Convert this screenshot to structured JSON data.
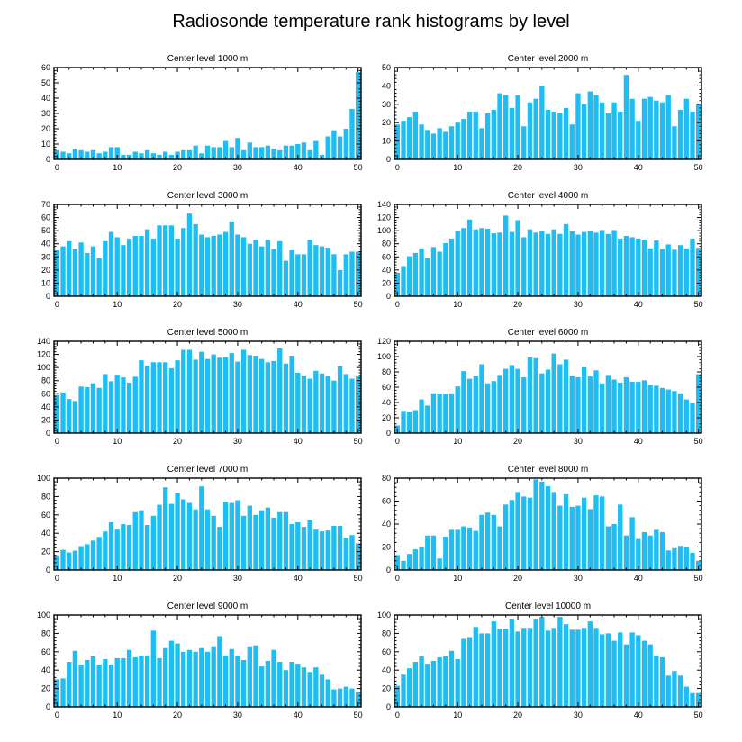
{
  "figure_title": "Radiosonde temperature rank histograms by level",
  "colors": {
    "bar": "#1EBEF5",
    "axis": "#000000",
    "background": "#ffffff"
  },
  "chart_data": [
    {
      "type": "bar",
      "title": "Center level 1000 m",
      "ylim": [
        0,
        60
      ],
      "yticks": [
        0,
        10,
        20,
        30,
        40,
        50,
        60
      ],
      "xticks": [
        0,
        10,
        20,
        30,
        40,
        50
      ],
      "values": [
        6,
        5,
        4,
        7,
        6,
        5,
        6,
        4,
        5,
        8,
        8,
        3,
        3,
        5,
        4,
        6,
        4,
        3,
        5,
        3,
        5,
        6,
        6,
        9,
        4,
        9,
        8,
        8,
        12,
        8,
        14,
        6,
        11,
        8,
        8,
        9,
        7,
        6,
        9,
        9,
        10,
        11,
        6,
        12,
        3,
        15,
        19,
        15,
        20,
        33,
        57
      ]
    },
    {
      "type": "bar",
      "title": "Center level 2000 m",
      "ylim": [
        0,
        50
      ],
      "yticks": [
        0,
        10,
        20,
        30,
        40,
        50
      ],
      "xticks": [
        0,
        10,
        20,
        30,
        40,
        50
      ],
      "values": [
        19,
        21,
        23,
        26,
        19,
        16,
        14,
        17,
        15,
        18,
        20,
        22,
        26,
        26,
        17,
        25,
        27,
        36,
        35,
        28,
        35,
        18,
        31,
        33,
        40,
        27,
        26,
        25,
        28,
        19,
        36,
        30,
        37,
        35,
        31,
        25,
        31,
        26,
        46,
        33,
        21,
        33,
        34,
        32,
        31,
        35,
        18,
        27,
        33,
        26,
        30
      ]
    },
    {
      "type": "bar",
      "title": "Center level 3000 m",
      "ylim": [
        0,
        70
      ],
      "yticks": [
        0,
        10,
        20,
        30,
        40,
        50,
        60,
        70
      ],
      "xticks": [
        0,
        10,
        20,
        30,
        40,
        50
      ],
      "values": [
        35,
        38,
        42,
        36,
        41,
        33,
        38,
        29,
        42,
        49,
        45,
        39,
        44,
        46,
        46,
        51,
        44,
        54,
        54,
        54,
        44,
        52,
        63,
        55,
        47,
        45,
        46,
        47,
        49,
        57,
        47,
        45,
        40,
        43,
        38,
        43,
        36,
        42,
        27,
        35,
        32,
        32,
        43,
        39,
        38,
        37,
        32,
        20,
        32,
        34,
        34
      ]
    },
    {
      "type": "bar",
      "title": "Center level 4000 m",
      "ylim": [
        0,
        140
      ],
      "yticks": [
        0,
        20,
        40,
        60,
        80,
        100,
        120,
        140
      ],
      "xticks": [
        0,
        10,
        20,
        30,
        40,
        50
      ],
      "values": [
        36,
        46,
        61,
        66,
        73,
        58,
        75,
        68,
        81,
        88,
        100,
        104,
        117,
        102,
        104,
        103,
        96,
        97,
        123,
        98,
        116,
        90,
        102,
        97,
        100,
        95,
        102,
        95,
        110,
        99,
        94,
        98,
        100,
        97,
        101,
        95,
        101,
        88,
        92,
        90,
        88,
        86,
        73,
        85,
        72,
        79,
        71,
        78,
        73,
        88,
        74
      ]
    },
    {
      "type": "bar",
      "title": "Center level 5000 m",
      "ylim": [
        0,
        140
      ],
      "yticks": [
        0,
        20,
        40,
        60,
        80,
        100,
        120,
        140
      ],
      "xticks": [
        0,
        10,
        20,
        30,
        40,
        50
      ],
      "values": [
        58,
        62,
        52,
        49,
        71,
        70,
        76,
        69,
        90,
        79,
        89,
        85,
        77,
        86,
        111,
        103,
        108,
        108,
        108,
        99,
        111,
        127,
        127,
        112,
        124,
        113,
        120,
        115,
        116,
        122,
        109,
        127,
        119,
        118,
        113,
        108,
        110,
        129,
        106,
        118,
        92,
        88,
        83,
        95,
        91,
        87,
        80,
        102,
        90,
        83,
        87
      ]
    },
    {
      "type": "bar",
      "title": "Center level 6000 m",
      "ylim": [
        0,
        120
      ],
      "yticks": [
        0,
        20,
        40,
        60,
        80,
        100,
        120
      ],
      "xticks": [
        0,
        10,
        20,
        30,
        40,
        50
      ],
      "values": [
        10,
        29,
        28,
        30,
        44,
        36,
        52,
        51,
        51,
        52,
        61,
        81,
        71,
        75,
        90,
        65,
        68,
        76,
        84,
        89,
        84,
        73,
        99,
        98,
        78,
        83,
        104,
        90,
        96,
        75,
        73,
        86,
        74,
        82,
        65,
        76,
        70,
        66,
        73,
        67,
        67,
        69,
        63,
        62,
        59,
        57,
        55,
        52,
        44,
        40,
        77
      ]
    },
    {
      "type": "bar",
      "title": "Center level 7000 m",
      "ylim": [
        0,
        100
      ],
      "yticks": [
        0,
        20,
        40,
        60,
        80,
        100
      ],
      "xticks": [
        0,
        10,
        20,
        30,
        40,
        50
      ],
      "values": [
        16,
        22,
        19,
        21,
        26,
        28,
        32,
        36,
        42,
        52,
        44,
        50,
        49,
        63,
        65,
        49,
        59,
        71,
        90,
        72,
        84,
        77,
        73,
        66,
        91,
        66,
        59,
        47,
        74,
        73,
        76,
        59,
        70,
        60,
        65,
        68,
        57,
        63,
        63,
        50,
        52,
        47,
        54,
        44,
        42,
        43,
        48,
        48,
        35,
        38,
        29
      ]
    },
    {
      "type": "bar",
      "title": "Center level 8000 m",
      "ylim": [
        0,
        80
      ],
      "yticks": [
        0,
        20,
        40,
        60,
        80
      ],
      "xticks": [
        0,
        10,
        20,
        30,
        40,
        50
      ],
      "values": [
        13,
        8,
        14,
        18,
        20,
        30,
        30,
        10,
        29,
        35,
        35,
        38,
        37,
        34,
        48,
        50,
        48,
        38,
        57,
        61,
        68,
        64,
        63,
        79,
        77,
        73,
        68,
        56,
        66,
        55,
        56,
        63,
        53,
        65,
        64,
        38,
        40,
        57,
        30,
        46,
        27,
        33,
        30,
        35,
        33,
        17,
        19,
        21,
        20,
        15,
        8
      ]
    },
    {
      "type": "bar",
      "title": "Center level 9000 m",
      "ylim": [
        0,
        100
      ],
      "yticks": [
        0,
        20,
        40,
        60,
        80,
        100
      ],
      "xticks": [
        0,
        10,
        20,
        30,
        40,
        50
      ],
      "values": [
        30,
        31,
        49,
        61,
        46,
        51,
        55,
        46,
        52,
        46,
        53,
        53,
        62,
        54,
        56,
        56,
        83,
        53,
        64,
        72,
        69,
        60,
        62,
        60,
        64,
        60,
        66,
        77,
        56,
        63,
        56,
        51,
        66,
        67,
        44,
        50,
        62,
        49,
        40,
        49,
        47,
        43,
        38,
        43,
        35,
        30,
        19,
        20,
        22,
        20,
        16
      ]
    },
    {
      "type": "bar",
      "title": "Center level 10000 m",
      "ylim": [
        0,
        100
      ],
      "yticks": [
        0,
        20,
        40,
        60,
        80,
        100
      ],
      "xticks": [
        0,
        10,
        20,
        30,
        40,
        50
      ],
      "values": [
        23,
        35,
        42,
        49,
        55,
        47,
        50,
        54,
        55,
        61,
        52,
        74,
        76,
        87,
        80,
        80,
        93,
        85,
        85,
        96,
        82,
        86,
        86,
        96,
        98,
        83,
        86,
        98,
        90,
        84,
        84,
        86,
        93,
        86,
        79,
        80,
        72,
        81,
        68,
        81,
        78,
        72,
        68,
        56,
        54,
        34,
        39,
        34,
        22,
        15,
        15
      ]
    }
  ]
}
